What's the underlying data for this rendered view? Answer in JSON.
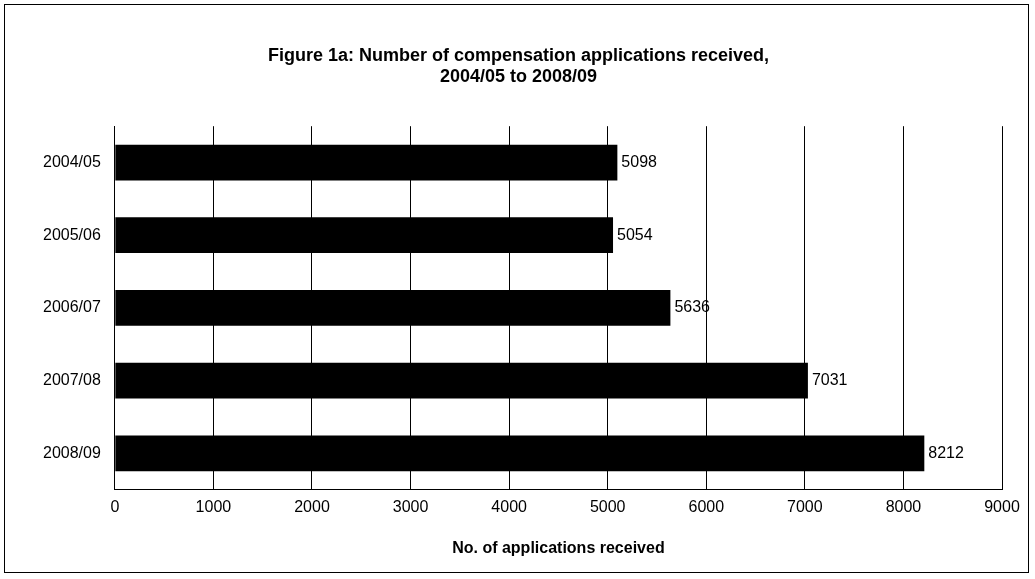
{
  "chart_data": {
    "type": "bar",
    "orientation": "horizontal",
    "title": "Figure 1a: Number of compensation applications received,\n2004/05 to 2008/09",
    "xlabel": "No. of applications received",
    "categories": [
      "2004/05",
      "2005/06",
      "2006/07",
      "2007/08",
      "2008/09"
    ],
    "values": [
      5098,
      5054,
      5636,
      7031,
      8212
    ],
    "color": "#000000",
    "xlim": [
      0,
      9000
    ],
    "xticks": [
      0,
      1000,
      2000,
      3000,
      4000,
      5000,
      6000,
      7000,
      8000,
      9000
    ],
    "grid": "x",
    "data_labels": true,
    "legend": false
  }
}
